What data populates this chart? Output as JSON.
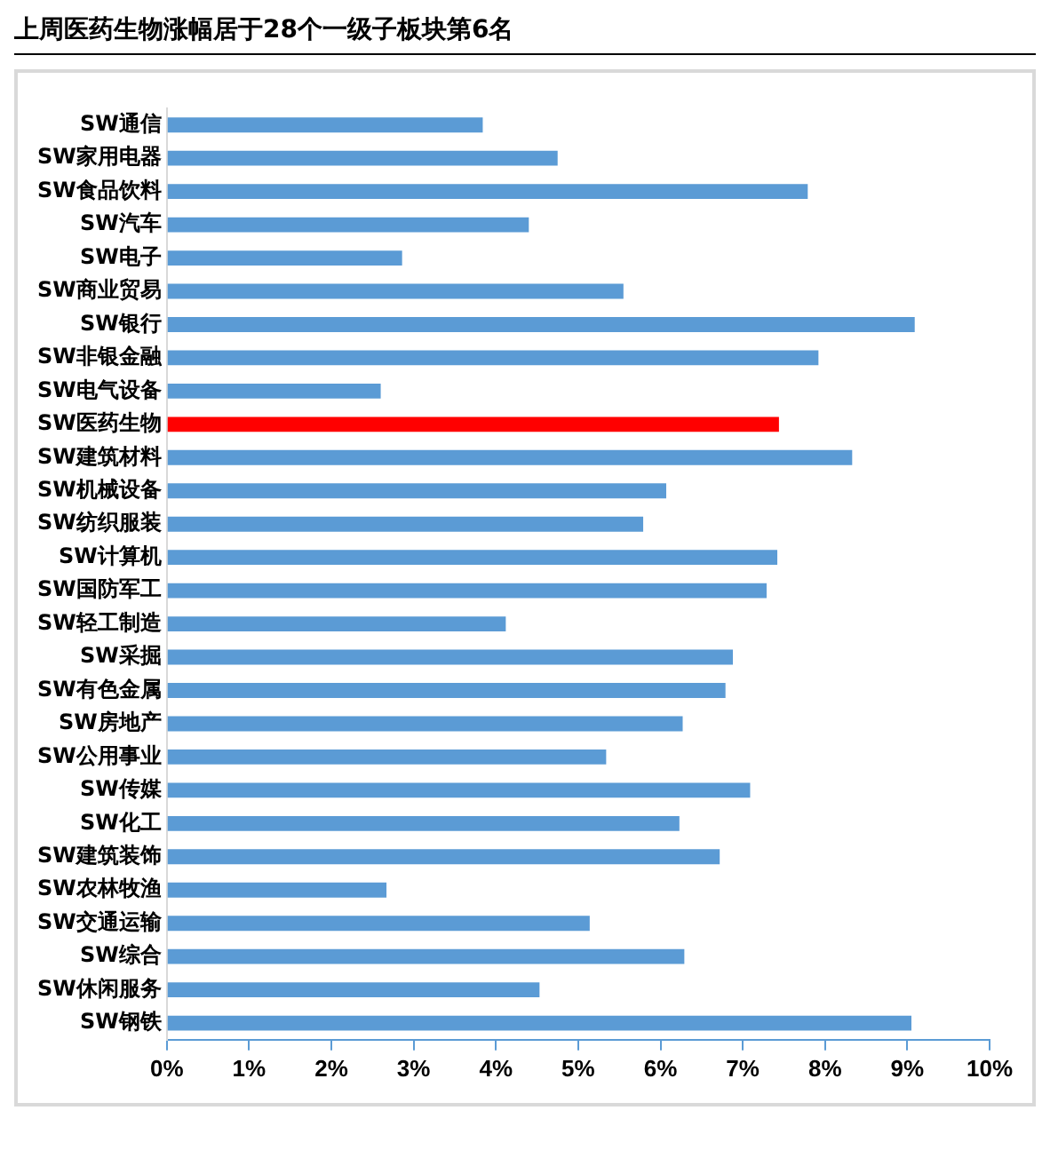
{
  "chart_data": {
    "type": "bar",
    "orientation": "horizontal",
    "title": "上周医药生物涨幅居于28个一级子板块第6名",
    "categories": [
      "SW通信",
      "SW家用电器",
      "SW食品饮料",
      "SW汽车",
      "SW电子",
      "SW商业贸易",
      "SW银行",
      "SW非银金融",
      "SW电气设备",
      "SW医药生物",
      "SW建筑材料",
      "SW机械设备",
      "SW纺织服装",
      "SW计算机",
      "SW国防军工",
      "SW轻工制造",
      "SW采掘",
      "SW有色金属",
      "SW房地产",
      "SW公用事业",
      "SW传媒",
      "SW化工",
      "SW建筑装饰",
      "SW农林牧渔",
      "SW交通运输",
      "SW综合",
      "SW休闲服务",
      "SW钢铁"
    ],
    "values": [
      3.84,
      4.75,
      7.79,
      4.4,
      2.86,
      5.55,
      9.09,
      7.92,
      2.6,
      7.44,
      8.33,
      6.07,
      5.79,
      7.42,
      7.29,
      4.12,
      6.88,
      6.79,
      6.27,
      5.34,
      7.09,
      6.23,
      6.72,
      2.67,
      5.14,
      6.29,
      4.53,
      9.05
    ],
    "colors": [
      "#5b9bd5",
      "#5b9bd5",
      "#5b9bd5",
      "#5b9bd5",
      "#5b9bd5",
      "#5b9bd5",
      "#5b9bd5",
      "#5b9bd5",
      "#5b9bd5",
      "#ff0000",
      "#5b9bd5",
      "#5b9bd5",
      "#5b9bd5",
      "#5b9bd5",
      "#5b9bd5",
      "#5b9bd5",
      "#5b9bd5",
      "#5b9bd5",
      "#5b9bd5",
      "#5b9bd5",
      "#5b9bd5",
      "#5b9bd5",
      "#5b9bd5",
      "#5b9bd5",
      "#5b9bd5",
      "#5b9bd5",
      "#5b9bd5",
      "#5b9bd5"
    ],
    "xlim": [
      0,
      10
    ],
    "xticks": [
      {
        "value": 0,
        "label": "0%"
      },
      {
        "value": 1,
        "label": "1%"
      },
      {
        "value": 2,
        "label": "2%"
      },
      {
        "value": 3,
        "label": "3%"
      },
      {
        "value": 4,
        "label": "4%"
      },
      {
        "value": 5,
        "label": "5%"
      },
      {
        "value": 6,
        "label": "6%"
      },
      {
        "value": 7,
        "label": "7%"
      },
      {
        "value": 8,
        "label": "8%"
      },
      {
        "value": 9,
        "label": "9%"
      },
      {
        "value": 10,
        "label": "10%"
      }
    ],
    "grid": false,
    "legend": false
  }
}
